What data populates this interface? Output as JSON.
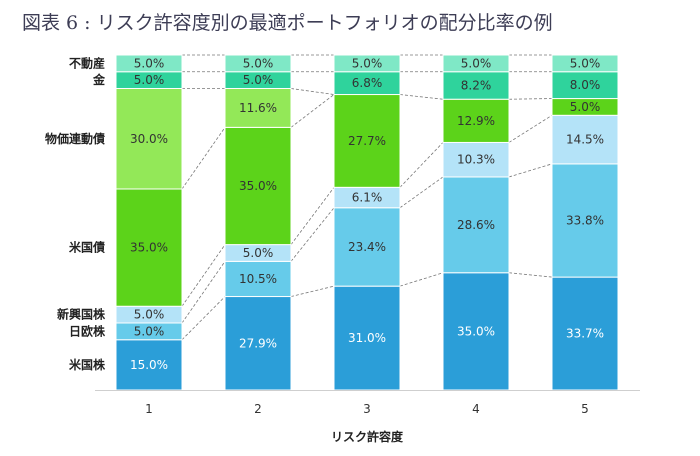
{
  "chart_data": {
    "type": "bar",
    "stacked": true,
    "title": "図表 6 : リスク許容度別の最適ポートフォリオの配分比率の例",
    "xlabel": "リスク許容度",
    "categories": [
      "1",
      "2",
      "3",
      "4",
      "5"
    ],
    "series": [
      {
        "name": "米国株",
        "color": "#2b9ed8",
        "text_color": "#ffffff",
        "values": [
          15.0,
          27.9,
          31.0,
          35.0,
          33.7
        ]
      },
      {
        "name": "日欧株",
        "color": "#66cbea",
        "text_color": "#333333",
        "values": [
          5.0,
          10.5,
          23.4,
          28.6,
          33.8
        ]
      },
      {
        "name": "新興国株",
        "color": "#b4e3f8",
        "text_color": "#333333",
        "values": [
          5.0,
          5.0,
          6.1,
          10.3,
          14.5
        ]
      },
      {
        "name": "米国債",
        "color": "#5cd31a",
        "text_color": "#333333",
        "values": [
          35.0,
          35.0,
          27.7,
          12.9,
          5.0
        ]
      },
      {
        "name": "物価連動債",
        "color": "#93e858",
        "text_color": "#333333",
        "values": [
          30.0,
          11.6,
          0,
          0,
          0
        ]
      },
      {
        "name": "金",
        "color": "#2fd39c",
        "text_color": "#333333",
        "values": [
          5.0,
          5.0,
          6.8,
          8.2,
          8.0
        ]
      },
      {
        "name": "不動産",
        "color": "#7fe8c6",
        "text_color": "#333333",
        "values": [
          5.0,
          5.0,
          5.0,
          5.0,
          5.0
        ]
      }
    ],
    "value_format": "%.1f%",
    "ylim": [
      0,
      100
    ],
    "legend": "left",
    "grid": false
  }
}
